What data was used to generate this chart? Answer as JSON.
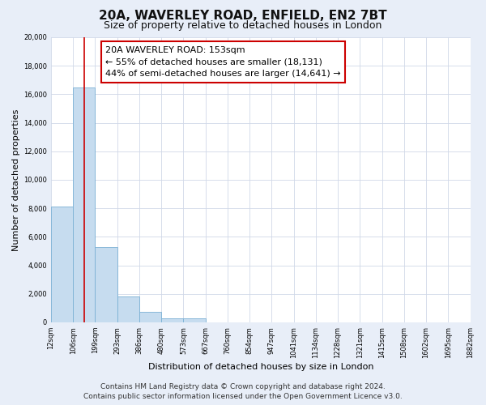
{
  "title": "20A, WAVERLEY ROAD, ENFIELD, EN2 7BT",
  "subtitle": "Size of property relative to detached houses in London",
  "xlabel": "Distribution of detached houses by size in London",
  "ylabel": "Number of detached properties",
  "bar_values": [
    8100,
    16500,
    5300,
    1800,
    750,
    300,
    300,
    0,
    0,
    0,
    0,
    0,
    0,
    0,
    0,
    0,
    0,
    0,
    0
  ],
  "bin_labels": [
    "12sqm",
    "106sqm",
    "199sqm",
    "293sqm",
    "386sqm",
    "480sqm",
    "573sqm",
    "667sqm",
    "760sqm",
    "854sqm",
    "947sqm",
    "1041sqm",
    "1134sqm",
    "1228sqm",
    "1321sqm",
    "1415sqm",
    "1508sqm",
    "1602sqm",
    "1695sqm",
    "1882sqm"
  ],
  "bar_color": "#c6dcef",
  "bar_edge_color": "#7ab0d4",
  "vline_color": "#cc0000",
  "vline_x_index": 1.5,
  "annotation_text_line1": "20A WAVERLEY ROAD: 153sqm",
  "annotation_text_line2": "← 55% of detached houses are smaller (18,131)",
  "annotation_text_line3": "44% of semi-detached houses are larger (14,641) →",
  "ylim": [
    0,
    20000
  ],
  "yticks": [
    0,
    2000,
    4000,
    6000,
    8000,
    10000,
    12000,
    14000,
    16000,
    18000,
    20000
  ],
  "footer_line1": "Contains HM Land Registry data © Crown copyright and database right 2024.",
  "footer_line2": "Contains public sector information licensed under the Open Government Licence v3.0.",
  "fig_background_color": "#e8eef8",
  "plot_background_color": "#ffffff",
  "grid_color": "#d0d8e8",
  "title_fontsize": 11,
  "subtitle_fontsize": 9,
  "ylabel_fontsize": 8,
  "xlabel_fontsize": 8,
  "annotation_fontsize": 8,
  "tick_fontsize": 6,
  "footer_fontsize": 6.5
}
